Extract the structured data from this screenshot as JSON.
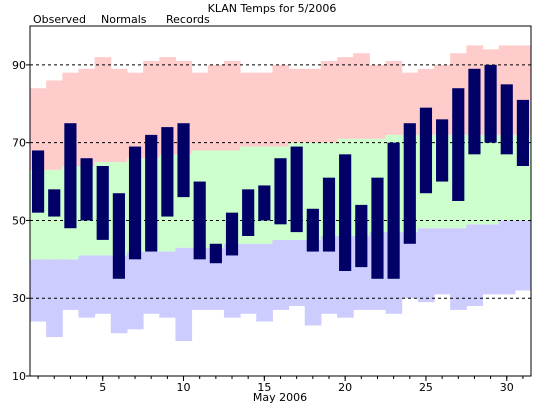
{
  "chart_data": {
    "type": "bar",
    "title": "KLAN Temps for 5/2006",
    "xlabel": "May 2006",
    "ylabel": "",
    "days": [
      1,
      2,
      3,
      4,
      5,
      6,
      7,
      8,
      9,
      10,
      11,
      12,
      13,
      14,
      15,
      16,
      17,
      18,
      19,
      20,
      21,
      22,
      23,
      24,
      25,
      26,
      27,
      28,
      29,
      30,
      31
    ],
    "ylim": [
      10,
      100
    ],
    "yticks": [
      10,
      30,
      50,
      70,
      90
    ],
    "xticks": [
      5,
      10,
      15,
      20,
      25,
      30
    ],
    "grid_y": [
      30,
      50,
      70,
      90
    ],
    "legend_placement": "top-left",
    "series": [
      {
        "name": "Observed",
        "color": "#000066",
        "low": [
          52,
          51,
          48,
          50,
          45,
          35,
          40,
          42,
          51,
          56,
          40,
          39,
          41,
          46,
          50,
          49,
          47,
          42,
          42,
          37,
          38,
          35,
          35,
          44,
          57,
          60,
          55,
          67,
          70,
          67,
          64
        ],
        "high": [
          68,
          58,
          75,
          66,
          64,
          57,
          69,
          72,
          74,
          75,
          60,
          44,
          52,
          58,
          59,
          66,
          69,
          53,
          61,
          67,
          54,
          61,
          70,
          75,
          79,
          76,
          84,
          89,
          90,
          85,
          81
        ]
      },
      {
        "name": "Normals",
        "color": "#ccffcc",
        "low": [
          40,
          40,
          40,
          41,
          41,
          41,
          42,
          42,
          42,
          43,
          43,
          43,
          44,
          44,
          44,
          45,
          45,
          45,
          46,
          46,
          46,
          47,
          47,
          47,
          48,
          48,
          48,
          49,
          49,
          50,
          50
        ],
        "high": [
          63,
          63,
          64,
          64,
          65,
          65,
          66,
          66,
          67,
          67,
          68,
          68,
          68,
          69,
          69,
          69,
          70,
          70,
          70,
          71,
          71,
          71,
          72,
          72,
          72,
          72,
          72,
          72,
          72,
          72,
          72
        ]
      },
      {
        "name": "Records",
        "color": "#ffcccc",
        "low": [
          24,
          20,
          27,
          25,
          26,
          21,
          22,
          26,
          25,
          19,
          27,
          27,
          25,
          26,
          24,
          27,
          28,
          23,
          26,
          25,
          27,
          27,
          26,
          30,
          29,
          31,
          27,
          28,
          31,
          31,
          32
        ],
        "high": [
          84,
          86,
          88,
          89,
          92,
          89,
          88,
          91,
          92,
          91,
          88,
          90,
          91,
          88,
          88,
          90,
          89,
          89,
          91,
          92,
          93,
          90,
          91,
          88,
          89,
          90,
          93,
          95,
          94,
          95,
          95
        ]
      }
    ],
    "band_colors": {
      "normal_low_band": "#ccccff",
      "normal_band": "#ccffcc",
      "record_high_band": "#ffcccc",
      "observed": "#000066"
    }
  }
}
